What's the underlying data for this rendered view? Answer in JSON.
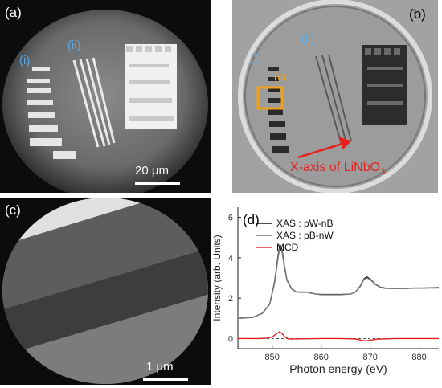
{
  "panels": {
    "a": {
      "label": "(a)",
      "regions": [
        "(i)",
        "(ii)"
      ],
      "scale": "20 μm"
    },
    "b": {
      "label": "(b)",
      "regions": [
        "(i)",
        "(ii)"
      ],
      "zoom_label": "(c)",
      "annotation": "X-axis of LiNbO",
      "annotation_sub": "3"
    },
    "c": {
      "label": "(c)",
      "scale": "1 μm"
    },
    "d": {
      "label": "(d)"
    }
  },
  "colors": {
    "region_label": "#5aa9e6",
    "zoom_box": "#f2a218",
    "arrow": "#e8201c",
    "mcd": "#e02020"
  },
  "chart_data": {
    "type": "line",
    "xlabel": "Photon energy (eV)",
    "ylabel": "Intensity (arb. Units)",
    "xlim": [
      843,
      884
    ],
    "ylim": [
      -0.5,
      6.5
    ],
    "xticks": [
      850,
      860,
      870,
      880
    ],
    "yticks": [
      0,
      2,
      4,
      6
    ],
    "legend_position": "top-left",
    "series": [
      {
        "name": "XAS : pW-nB",
        "color": "#111111",
        "x": [
          843,
          846,
          848,
          849.5,
          850.5,
          851.2,
          851.6,
          852,
          852.5,
          853,
          854,
          855,
          856,
          857,
          858,
          859,
          860,
          862,
          864,
          866,
          867,
          868,
          868.7,
          869.3,
          870,
          871,
          872,
          873,
          875,
          877,
          879,
          881,
          884
        ],
        "y": [
          1.0,
          1.05,
          1.25,
          1.7,
          2.8,
          4.1,
          4.65,
          4.4,
          3.6,
          2.9,
          2.45,
          2.3,
          2.3,
          2.3,
          2.25,
          2.2,
          2.18,
          2.18,
          2.18,
          2.2,
          2.3,
          2.6,
          2.95,
          3.05,
          2.95,
          2.7,
          2.55,
          2.5,
          2.48,
          2.48,
          2.5,
          2.5,
          2.52
        ]
      },
      {
        "name": "XAS : pB-nW",
        "color": "#7a7a7a",
        "x": [
          843,
          846,
          848,
          849.5,
          850.5,
          851.2,
          851.6,
          852,
          852.5,
          853,
          854,
          855,
          856,
          857,
          858,
          859,
          860,
          862,
          864,
          866,
          867,
          868,
          868.7,
          869.3,
          870,
          871,
          872,
          873,
          875,
          877,
          879,
          881,
          884
        ],
        "y": [
          1.0,
          1.05,
          1.25,
          1.7,
          2.75,
          4.0,
          4.55,
          4.3,
          3.55,
          2.88,
          2.44,
          2.3,
          2.28,
          2.3,
          2.24,
          2.2,
          2.17,
          2.17,
          2.17,
          2.2,
          2.3,
          2.58,
          2.92,
          3.0,
          2.92,
          2.68,
          2.54,
          2.48,
          2.47,
          2.47,
          2.49,
          2.5,
          2.5
        ]
      },
      {
        "name": "MCD",
        "color": "#e02020",
        "x": [
          843,
          847,
          849,
          850,
          850.8,
          851.5,
          852,
          852.6,
          853.3,
          854.5,
          857,
          860,
          864,
          867,
          868.5,
          869.2,
          870,
          871.5,
          875,
          880,
          884
        ],
        "y": [
          0,
          0,
          0.02,
          0.08,
          0.22,
          0.33,
          0.25,
          0.08,
          -0.02,
          -0.02,
          -0.01,
          0,
          0,
          -0.02,
          -0.1,
          -0.12,
          -0.08,
          -0.03,
          0,
          0,
          0
        ]
      }
    ]
  }
}
